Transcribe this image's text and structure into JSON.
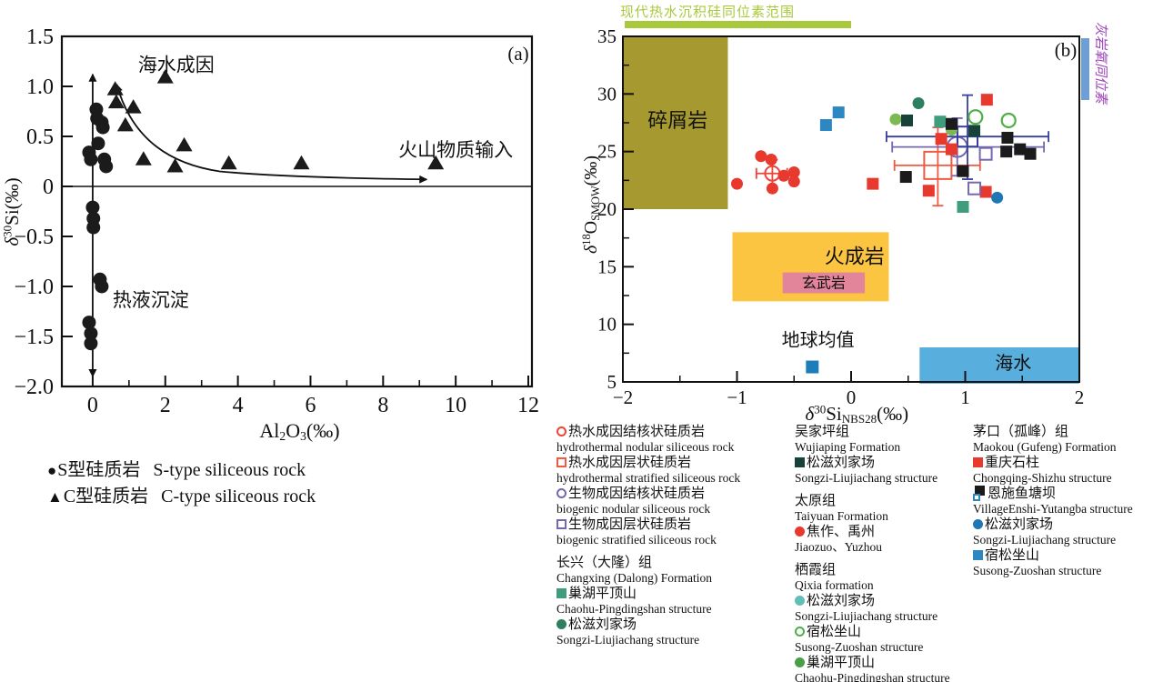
{
  "chart_data": [
    {
      "type": "scatter",
      "panel_label": "(a)",
      "xlabel_parts": [
        [
          "Al",
          "n"
        ],
        [
          "2",
          "sub"
        ],
        [
          "O",
          "n"
        ],
        [
          "3",
          "sub"
        ],
        [
          "(‰)",
          "n"
        ]
      ],
      "ylabel_parts": [
        [
          "δ",
          "i"
        ],
        [
          "30",
          "sup"
        ],
        [
          "Si",
          "n"
        ],
        [
          "(‰)",
          "n"
        ]
      ],
      "xlim": [
        -0.85,
        12.1
      ],
      "ylim": [
        -2.0,
        1.5
      ],
      "xticks": [
        0,
        2,
        4,
        6,
        8,
        10,
        12
      ],
      "xtick_labels": [
        "0",
        "2",
        "4",
        "6",
        "8",
        "10",
        "12"
      ],
      "x_minor_ticks": [
        1,
        3,
        5,
        7,
        9,
        11
      ],
      "yticks": [
        1.5,
        1.0,
        0.5,
        0,
        -0.5,
        -1.0,
        -1.5,
        -2.0
      ],
      "ytick_labels": [
        "1.5",
        "1.0",
        "0.5",
        "0",
        "−0.5",
        "−1.0",
        "−1.5",
        "−2.0"
      ],
      "zero_line": true,
      "series": [
        {
          "name": "S型硅质岩 S-type siliceous rock",
          "symbol": "filled-circle",
          "color": "#1b1b1b",
          "points": [
            [
              0.1,
              0.77
            ],
            [
              0.12,
              0.68
            ],
            [
              0.25,
              0.64
            ],
            [
              0.28,
              0.59
            ],
            [
              0.15,
              0.43
            ],
            [
              -0.1,
              0.34
            ],
            [
              -0.05,
              0.27
            ],
            [
              0.32,
              0.27
            ],
            [
              0.37,
              0.2
            ],
            [
              0.0,
              -0.21
            ],
            [
              0.02,
              -0.32
            ],
            [
              0.02,
              -0.41
            ],
            [
              0.2,
              -0.93
            ],
            [
              0.25,
              -1.0
            ],
            [
              -0.1,
              -1.36
            ],
            [
              -0.05,
              -1.47
            ],
            [
              -0.05,
              -1.57
            ]
          ]
        },
        {
          "name": "C型硅质岩 C-type siliceous rock",
          "symbol": "filled-triangle",
          "color": "#1b1b1b",
          "points": [
            [
              0.62,
              0.97
            ],
            [
              0.65,
              0.84
            ],
            [
              1.12,
              0.79
            ],
            [
              0.9,
              0.61
            ],
            [
              2.0,
              1.09
            ],
            [
              2.52,
              0.41
            ],
            [
              1.4,
              0.27
            ],
            [
              2.27,
              0.2
            ],
            [
              3.75,
              0.23
            ],
            [
              5.75,
              0.23
            ],
            [
              9.45,
              0.23
            ]
          ]
        }
      ],
      "annotations": [
        {
          "text": "海水成因",
          "x": 2.3,
          "y": 1.15,
          "size": 21
        },
        {
          "text": "火山物质输入",
          "x": 10.0,
          "y": 0.3,
          "size": 21
        },
        {
          "text": "热液沉淀",
          "x": 1.6,
          "y": -1.2,
          "size": 21
        }
      ],
      "double_arrow": {
        "x": 0,
        "from_y": 1.12,
        "to_y": -1.9
      },
      "trend_arrow": {
        "from": [
          0.66,
          1.02
        ],
        "to": [
          9.2,
          0.07
        ]
      }
    },
    {
      "type": "scatter",
      "panel_label": "(b)",
      "xlabel_parts": [
        [
          "δ",
          "i"
        ],
        [
          "30",
          "sup"
        ],
        [
          "Si",
          "n"
        ],
        [
          "NBS28",
          "sub"
        ],
        [
          "(‰)",
          "n"
        ]
      ],
      "ylabel_parts": [
        [
          "δ",
          "i"
        ],
        [
          "18",
          "sup"
        ],
        [
          "O",
          "n"
        ],
        [
          "SMOW",
          "sub"
        ],
        [
          "(‰)",
          "n"
        ]
      ],
      "xlim": [
        -2,
        2
      ],
      "ylim": [
        5,
        35
      ],
      "xticks": [
        -2,
        -1,
        0,
        1,
        2
      ],
      "xtick_labels": [
        "−2",
        "−1",
        "0",
        "1",
        "2"
      ],
      "x_minor_ticks": [
        -1.5,
        -0.5,
        0.5,
        1.5
      ],
      "yticks": [
        5,
        10,
        15,
        20,
        25,
        30,
        35
      ],
      "ytick_labels": [
        "5",
        "10",
        "15",
        "20",
        "25",
        "30",
        "35"
      ],
      "y_minor_ticks": [
        7.5,
        12.5,
        17.5,
        22.5,
        27.5,
        32.5
      ],
      "regions": [
        {
          "label": "碎屑岩",
          "x0": -2,
          "x1": -1.08,
          "y0": 20,
          "y1": 35,
          "fill": "#a6992f",
          "label_color": "#3f3b15",
          "label_x": -1.52,
          "label_y": 27.1,
          "label_size": 22
        },
        {
          "label": "火成岩",
          "x0": -1.04,
          "x1": 0.33,
          "y0": 12,
          "y1": 18,
          "fill": "#fbc441",
          "label_color": "#333333",
          "label_x": 0.03,
          "label_y": 15.3,
          "label_size": 22
        },
        {
          "label": "海水",
          "x0": 0.6,
          "x1": 2.0,
          "y0": 4.85,
          "y1": 8.0,
          "fill": "#58aedd",
          "label_color": "#2a2a2a",
          "label_x": 1.42,
          "label_y": 6.1,
          "label_size": 20
        }
      ],
      "basalt_label": {
        "text": "玄武岩",
        "x0": -0.6,
        "x1": 0.12,
        "y0": 12.7,
        "y1": 14.5,
        "bg": "#e2849a",
        "color": "#3c2030",
        "size": 16
      },
      "earth_avg": {
        "label": "地球均值",
        "x": -0.34,
        "y": 6.3,
        "color": "#1e7cb8",
        "label_x": -0.29,
        "label_y": 8.1,
        "label_size": 20
      },
      "top_bar": {
        "text": "现代热水沉积硅同位素范围",
        "x0": -2,
        "x1": 0,
        "color": "#a9c93d"
      },
      "right_bar": {
        "text": "灰岩氧同位素",
        "bar_color": "#6e9fd4",
        "text_color": "#9b44b6"
      },
      "series": [
        {
          "name": "太原组 焦作、禹州",
          "symbol": "filled-circle",
          "color": "#e8392e",
          "points": [
            [
              -1.0,
              22.2
            ],
            [
              -0.79,
              24.6
            ],
            [
              -0.7,
              24.3
            ],
            [
              -0.69,
              21.8
            ],
            [
              -0.59,
              22.9
            ],
            [
              -0.5,
              23.2
            ],
            [
              -0.5,
              22.4
            ]
          ]
        },
        {
          "name": "茅口组 宿松坐山",
          "symbol": "filled-square",
          "color": "#2d87c3",
          "points": [
            [
              -0.22,
              27.3
            ],
            [
              -0.11,
              28.4
            ]
          ]
        },
        {
          "name": "长兴（大隆）组 松滋刘家场",
          "symbol": "filled-circle",
          "color": "#2e7f60",
          "points": [
            [
              0.59,
              29.2
            ]
          ]
        },
        {
          "name": "栖霞组 巢湖平顶山",
          "symbol": "filled-circle",
          "color": "#7cb950",
          "points": [
            [
              0.39,
              27.8
            ],
            [
              0.88,
              26.9
            ]
          ]
        },
        {
          "name": "吴家坪组 松滋刘家场",
          "symbol": "filled-square",
          "color": "#16423a",
          "points": [
            [
              0.49,
              27.7
            ],
            [
              1.08,
              26.8
            ]
          ]
        },
        {
          "name": "栖霞组 宿松坐山",
          "symbol": "open-circle",
          "color": "#4fae47",
          "points": [
            [
              1.09,
              28.0
            ],
            [
              1.38,
              27.7
            ]
          ]
        },
        {
          "name": "长兴（大隆）组 巢湖平顶山",
          "symbol": "filled-square",
          "color": "#3f9d7c",
          "points": [
            [
              0.78,
              27.6
            ],
            [
              0.98,
              20.2
            ]
          ]
        },
        {
          "name": "茅口组 恩施鱼塘坝",
          "symbol": "filled-square",
          "color": "#1b1b1b",
          "points": [
            [
              0.88,
              27.4
            ],
            [
              1.37,
              26.2
            ],
            [
              1.36,
              25.0
            ],
            [
              1.48,
              25.2
            ],
            [
              1.57,
              24.8
            ],
            [
              0.98,
              23.3
            ],
            [
              0.48,
              22.8
            ]
          ]
        },
        {
          "name": "茅口组 重庆石柱",
          "symbol": "filled-square",
          "color": "#e8392e",
          "points": [
            [
              1.19,
              29.5
            ],
            [
              0.79,
              26.1
            ],
            [
              0.88,
              25.2
            ],
            [
              0.19,
              22.2
            ],
            [
              0.68,
              21.6
            ],
            [
              1.18,
              21.5
            ]
          ]
        },
        {
          "name": "茅口组 松滋刘家场",
          "symbol": "filled-circle",
          "color": "#1f78b4",
          "points": [
            [
              1.28,
              21.0
            ]
          ]
        },
        {
          "name": "生物成因层状硅质岩",
          "symbol": "open-square",
          "color": "#7468b2",
          "points": [
            [
              1.18,
              24.8
            ],
            [
              1.08,
              21.8
            ]
          ]
        }
      ],
      "errorbar_points": [
        {
          "name": "热水成因结核状硅质岩 均值",
          "symbol": "circle",
          "color": "#ef4438",
          "x": -0.69,
          "y": 23.1,
          "xlo": -0.83,
          "xhi": -0.56,
          "ylo": 21.7,
          "yhi": 24.3,
          "r": 8
        },
        {
          "name": "热水成因层状硅质岩 均值",
          "symbol": "square",
          "color": "#f05a42",
          "x": 0.76,
          "y": 23.8,
          "xlo": 0.38,
          "xhi": 1.13,
          "ylo": 20.3,
          "yhi": 27.1,
          "s": 30
        },
        {
          "name": "生物成因结核状硅质岩 均值",
          "symbol": "circle",
          "color": "#7468b2",
          "x": 0.93,
          "y": 25.4,
          "xlo": 0.36,
          "xhi": 1.69,
          "ylo": 22.9,
          "yhi": 27.9,
          "r": 11
        },
        {
          "name": "生物成因层状硅质岩 均值",
          "symbol": "square",
          "color": "#383f9b",
          "x": 1.02,
          "y": 26.3,
          "xlo": 0.31,
          "xhi": 1.73,
          "ylo": 22.6,
          "yhi": 29.9,
          "s": 22
        }
      ]
    }
  ],
  "legend_a": [
    {
      "symbol": "●",
      "zh": "S型硅质岩",
      "en": "S-type siliceous rock"
    },
    {
      "symbol": "▲",
      "zh": "C型硅质岩",
      "en": "C-type siliceous rock"
    }
  ],
  "legend_b": {
    "columns": [
      [
        {
          "title": null,
          "items": [
            {
              "symbol": "open-circle",
              "color": "#ef4438",
              "zh": "热水成因结核状硅质岩",
              "en": "hydrothermal nodular siliceous rock"
            },
            {
              "symbol": "open-square",
              "color": "#f05a42",
              "zh": "热水成因层状硅质岩",
              "en": "hydrothermal stratified siliceous rock"
            },
            {
              "symbol": "open-circle",
              "color": "#7468b2",
              "zh": "生物成因结核状硅质岩",
              "en": "biogenic nodular siliceous rock"
            },
            {
              "symbol": "open-square",
              "color": "#7468b2",
              "zh": "生物成因层状硅质岩",
              "en": "biogenic stratified siliceous rock"
            }
          ]
        },
        {
          "title": {
            "zh": "长兴（大隆）组",
            "en": "Changxing (Dalong) Formation"
          },
          "items": [
            {
              "symbol": "filled-square",
              "color": "#3f9d7c",
              "zh": "巢湖平顶山",
              "en": "Chaohu-Pingdingshan structure"
            },
            {
              "symbol": "filled-circle",
              "color": "#2e7f60",
              "zh": "松滋刘家场",
              "en": "Songzi-Liujiachang structure"
            }
          ]
        }
      ],
      [
        {
          "title": {
            "zh": "吴家坪组",
            "en": "Wujiaping Formation"
          },
          "items": [
            {
              "symbol": "filled-square",
              "color": "#16423a",
              "zh": "松滋刘家场",
              "en": "Songzi-Liujiachang structure"
            }
          ]
        },
        {
          "title": {
            "zh": "太原组",
            "en": "Taiyuan Formation"
          },
          "items": [
            {
              "symbol": "filled-circle",
              "color": "#e8392e",
              "zh": "焦作、禹州",
              "en": "Jiaozuo、Yuzhou"
            }
          ]
        },
        {
          "title": {
            "zh": "栖霞组",
            "en": "Qixia formation"
          },
          "items": [
            {
              "symbol": "filled-circle",
              "color": "#62bfb7",
              "zh": "松滋刘家场",
              "en": "Songzi-Liujiachang structure"
            },
            {
              "symbol": "open-circle",
              "color": "#4fae47",
              "zh": "宿松坐山",
              "en": "Susong-Zuoshan structure"
            },
            {
              "symbol": "filled-circle",
              "color": "#4a9e45",
              "zh": "巢湖平顶山",
              "en": "Chaohu-Pingdingshan structure"
            }
          ]
        }
      ],
      [
        {
          "title": {
            "zh": "茅口（孤峰）组",
            "en": "Maokou (Gufeng) Formation"
          },
          "items": [
            {
              "symbol": "filled-square",
              "color": "#e8392e",
              "zh": "重庆石柱",
              "en": "Chongqing-Shizhu structure"
            },
            {
              "symbol": "square-pair",
              "color": "#1b1b1b",
              "color2": "#2d87c3",
              "zh": "恩施鱼塘坝",
              "en": "VillageEnshi-Yutangba structure"
            },
            {
              "symbol": "filled-circle",
              "color": "#1f78b4",
              "zh": "松滋刘家场",
              "en": "Songzi-Liujiachang structure"
            },
            {
              "symbol": "filled-square",
              "color": "#2d87c3",
              "zh": "宿松坐山",
              "en": "Susong-Zuoshan structure"
            }
          ]
        }
      ]
    ]
  }
}
